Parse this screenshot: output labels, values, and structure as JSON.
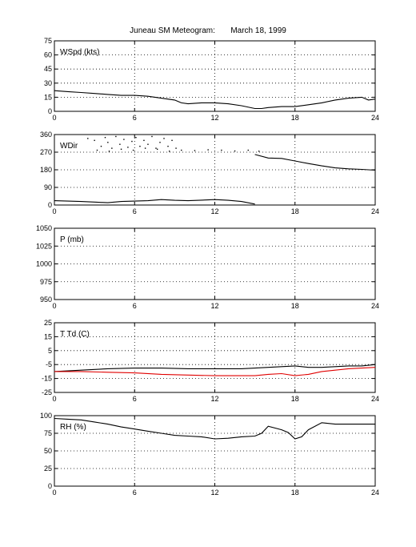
{
  "title": "Juneau SM Meteogram:       March 18, 1999",
  "chart_data": [
    {
      "type": "line",
      "label": "WSpd (kts)",
      "xlim": [
        0,
        24
      ],
      "xticks": [
        0,
        6,
        12,
        18,
        24
      ],
      "ylim": [
        0,
        75
      ],
      "yticks": [
        0,
        15,
        30,
        45,
        60,
        75
      ],
      "grid": true,
      "series": [
        {
          "color": "#000000",
          "x": [
            0,
            1,
            2,
            3,
            4,
            5,
            6,
            7,
            8,
            9,
            9.5,
            10,
            11,
            12,
            13,
            14,
            15,
            15.5,
            16,
            17,
            18,
            19,
            20,
            21,
            22,
            23,
            23.5,
            24
          ],
          "y": [
            22,
            21,
            20,
            19,
            18,
            17,
            17,
            16,
            14,
            12,
            9,
            8,
            9,
            9,
            8,
            6,
            3,
            3,
            4,
            5,
            5,
            7,
            9,
            12,
            14,
            15,
            12,
            13
          ]
        }
      ]
    },
    {
      "type": "scatter",
      "label": "WDir",
      "xlim": [
        0,
        24
      ],
      "xticks": [
        0,
        6,
        12,
        18,
        24
      ],
      "ylim": [
        0,
        360
      ],
      "yticks": [
        0,
        90,
        180,
        270,
        360
      ],
      "grid": true,
      "series": [
        {
          "color": "#000000",
          "x": [
            0,
            1,
            2,
            3,
            4,
            5,
            6,
            7,
            8,
            9,
            10,
            11,
            12,
            13,
            14,
            15
          ],
          "y": [
            22,
            20,
            18,
            15,
            12,
            18,
            20,
            22,
            28,
            24,
            22,
            25,
            28,
            24,
            18,
            5
          ]
        },
        {
          "color": "#000000",
          "x": [
            15,
            16,
            17,
            18,
            19,
            20,
            21,
            22,
            23,
            24
          ],
          "y": [
            258,
            240,
            238,
            225,
            212,
            200,
            190,
            185,
            182,
            178
          ]
        },
        {
          "color": "#000000",
          "mode": "markers",
          "x": [
            2.5,
            3,
            3.5,
            3.8,
            4,
            4.3,
            4.6,
            4.9,
            5.2,
            5.5,
            5.8,
            6.1,
            6.4,
            6.7,
            7,
            7.3,
            7.6,
            7.9,
            8.2,
            8.5,
            8.8,
            9.1,
            3.2,
            4.1,
            5.0,
            5.9,
            6.8,
            7.7,
            8.6,
            9.5,
            10.5,
            11.5,
            12.5,
            13.5,
            14.5,
            15.3
          ],
          "y": [
            340,
            330,
            300,
            345,
            320,
            290,
            350,
            310,
            335,
            295,
            325,
            345,
            300,
            330,
            310,
            350,
            290,
            320,
            340,
            300,
            330,
            290,
            280,
            275,
            285,
            280,
            290,
            285,
            275,
            280,
            278,
            282,
            280,
            276,
            280,
            275
          ]
        }
      ]
    },
    {
      "type": "line",
      "label": "P (mb)",
      "xlim": [
        0,
        24
      ],
      "xticks": [
        0,
        6,
        12,
        18,
        24
      ],
      "ylim": [
        950,
        1050
      ],
      "yticks": [
        950,
        975,
        1000,
        1025,
        1050
      ],
      "grid": true,
      "series": []
    },
    {
      "type": "line",
      "label": "T Td (C)",
      "xlim": [
        0,
        24
      ],
      "xticks": [
        0,
        6,
        12,
        18,
        24
      ],
      "ylim": [
        -25,
        25
      ],
      "yticks": [
        -25,
        -15,
        -5,
        5,
        15,
        25
      ],
      "grid": true,
      "series": [
        {
          "color": "#000000",
          "x": [
            0,
            2,
            4,
            6,
            8,
            10,
            12,
            14,
            15,
            16,
            17,
            18,
            19,
            20,
            21,
            22,
            23,
            24
          ],
          "y": [
            -10,
            -9,
            -8,
            -7.5,
            -7.5,
            -8,
            -8,
            -8,
            -7.5,
            -7,
            -6.5,
            -6,
            -7,
            -7,
            -6.5,
            -6,
            -6,
            -5
          ]
        },
        {
          "color": "#e00000",
          "x": [
            0,
            2,
            4,
            6,
            8,
            10,
            12,
            14,
            15,
            16,
            17,
            18,
            19,
            20,
            21,
            22,
            23,
            24
          ],
          "y": [
            -10,
            -10,
            -10.5,
            -11,
            -12,
            -12.5,
            -13,
            -13,
            -13,
            -12,
            -11.5,
            -13,
            -12,
            -10,
            -9,
            -8,
            -7.5,
            -7
          ]
        }
      ]
    },
    {
      "type": "line",
      "label": "RH (%)",
      "xlim": [
        0,
        24
      ],
      "xticks": [
        0,
        6,
        12,
        18,
        24
      ],
      "ylim": [
        0,
        100
      ],
      "yticks": [
        0,
        25,
        50,
        75,
        100
      ],
      "grid": true,
      "series": [
        {
          "color": "#000000",
          "x": [
            0,
            1,
            2,
            3,
            4,
            5,
            6,
            7,
            8,
            9,
            10,
            11,
            12,
            13,
            14,
            15,
            15.5,
            16,
            17,
            17.5,
            18,
            18.5,
            19,
            20,
            21,
            22,
            23,
            24
          ],
          "y": [
            96,
            95,
            94,
            91,
            88,
            84,
            81,
            78,
            75,
            72,
            71,
            70,
            67,
            68,
            70,
            71,
            75,
            85,
            80,
            76,
            67,
            70,
            80,
            90,
            88,
            88,
            88,
            88
          ]
        }
      ]
    }
  ]
}
